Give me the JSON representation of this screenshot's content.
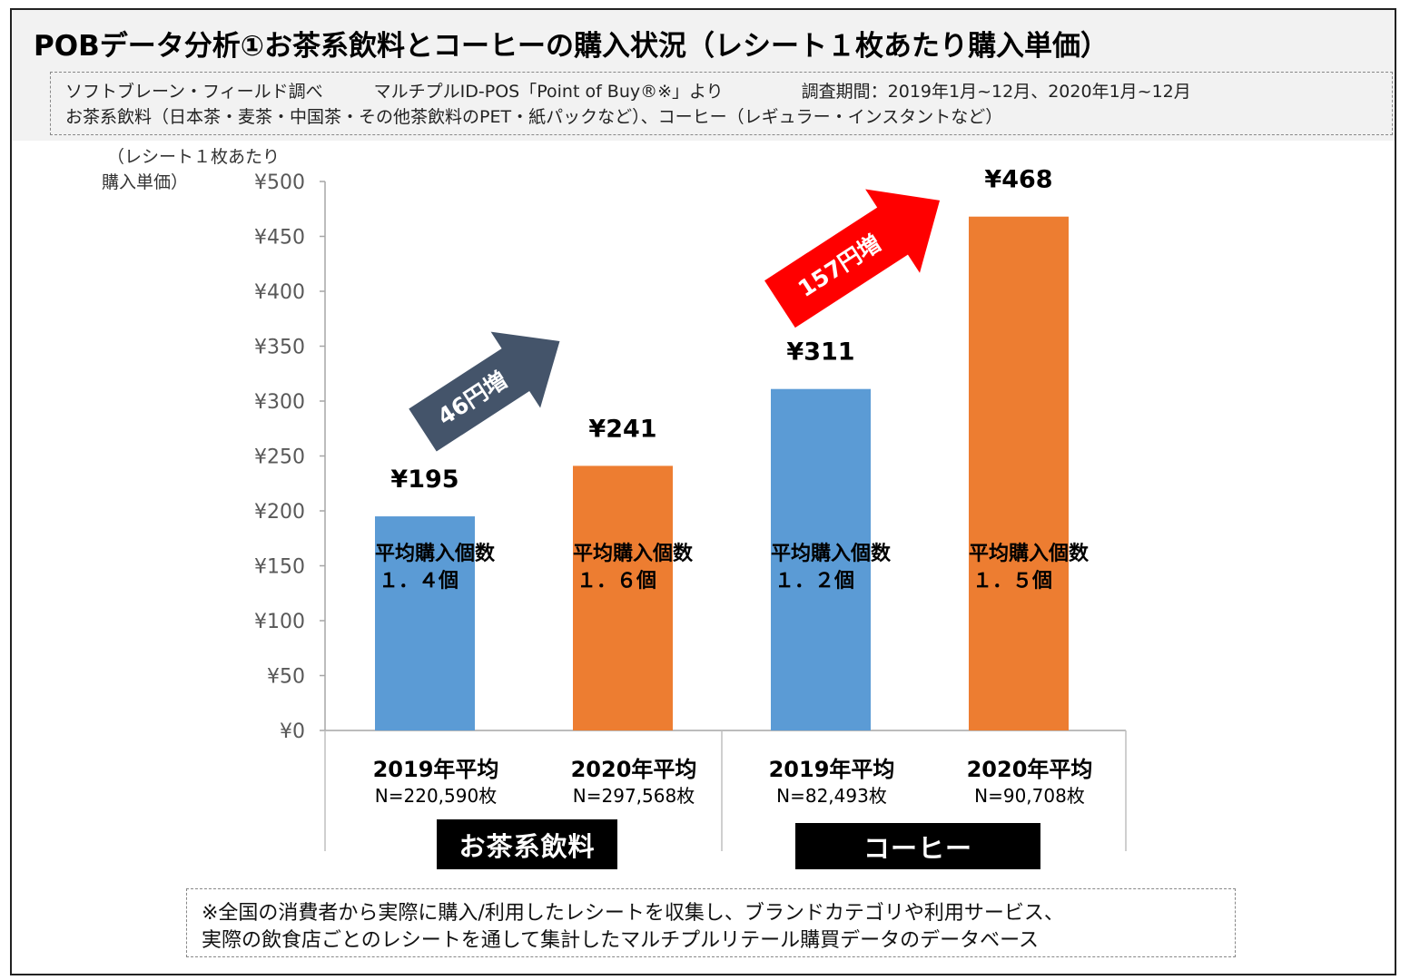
{
  "title": "POBデータ分析①お茶系飲料とコーヒーの購入状況（レシート１枚あたり購入単価）",
  "info": {
    "source": "ソフトブレーン・フィールド調べ",
    "method": "マルチプルID-POS「Point of Buy®※」より",
    "period": "調査期間：2019年1月~12月、2020年1月~12月",
    "scope": "お茶系飲料（日本茶・麦茶・中国茶・その他茶飲料のPET・紙パックなど）、コーヒー（レギュラー・インスタントなど）"
  },
  "y_unit_line1": "（レシート１枚あたり",
  "y_unit_line2": "購入単価）",
  "chart_data": {
    "type": "bar",
    "ylim": [
      0,
      500
    ],
    "y_ticks": [
      0,
      50,
      100,
      150,
      200,
      250,
      300,
      350,
      400,
      450,
      500
    ],
    "y_tick_labels": [
      "¥0",
      "¥50",
      "¥100",
      "¥150",
      "¥200",
      "¥250",
      "¥300",
      "¥350",
      "¥400",
      "¥450",
      "¥500"
    ],
    "categories": [
      "2019年平均",
      "2020年平均",
      "2019年平均",
      "2020年平均"
    ],
    "values": [
      195,
      241,
      311,
      468
    ],
    "value_labels": [
      "¥195",
      "¥241",
      "¥311",
      "¥468"
    ],
    "sample_sizes": [
      "N=220,590枚",
      "N=297,568枚",
      "N=82,493枚",
      "N=90,708枚"
    ],
    "avg_items_title": "平均購入個数",
    "avg_items": [
      "１．４個",
      "１．６個",
      "１．２個",
      "１．５個"
    ],
    "groups": [
      {
        "name": "お茶系飲料",
        "bars": [
          0,
          1
        ]
      },
      {
        "name": "コーヒー",
        "bars": [
          2,
          3
        ]
      }
    ],
    "bar_colors": [
      "#5b9bd5",
      "#ed7d31",
      "#5b9bd5",
      "#ed7d31"
    ],
    "annotations": [
      {
        "text": "46円増",
        "color": "#44546a",
        "from_bar": 0,
        "to_bar": 1
      },
      {
        "text": "157円増",
        "color": "#ff0000",
        "from_bar": 2,
        "to_bar": 3
      }
    ],
    "grid": false
  },
  "footnote": {
    "line1": "※全国の消費者から実際に購入/利用したレシートを収集し、ブランドカテゴリや利用サービス、",
    "line2": "実際の飲食店ごとのレシートを通して集計したマルチプルリテール購買データのデータベース"
  }
}
